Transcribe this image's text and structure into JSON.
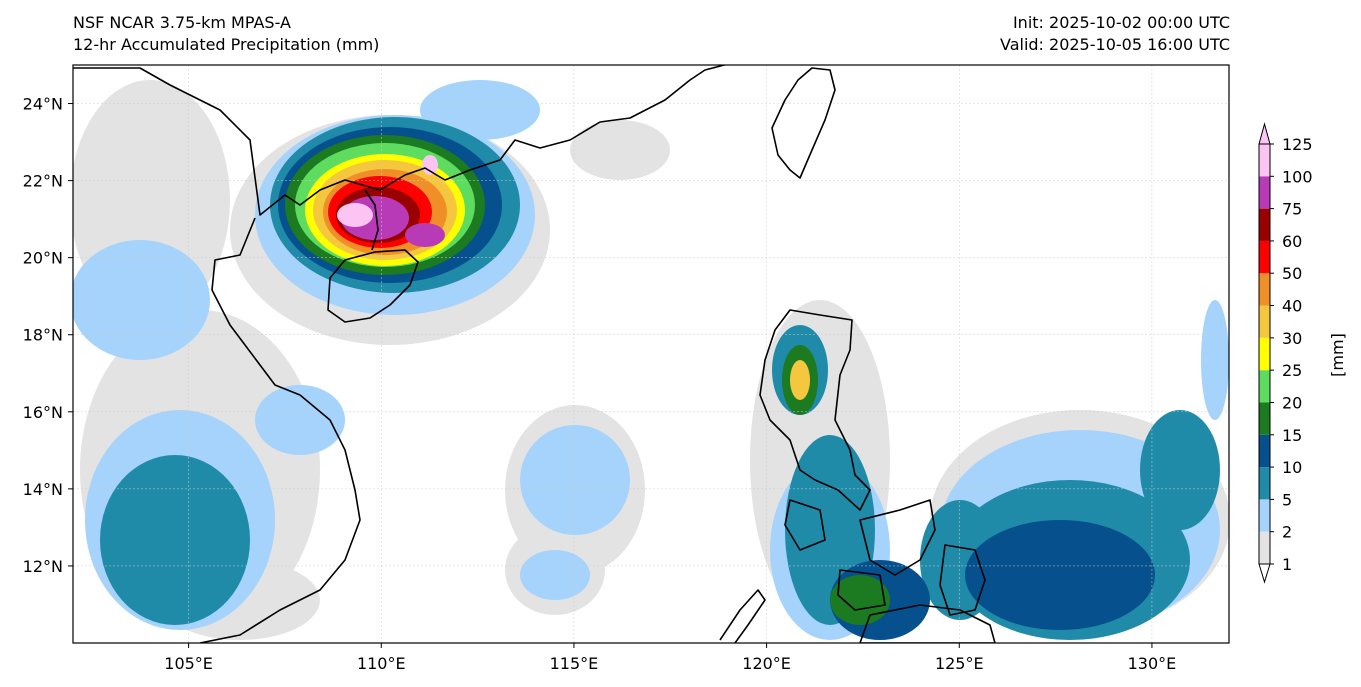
{
  "header": {
    "model": "NSF NCAR 3.75-km MPAS-A",
    "field": "12-hr Accumulated Precipitation (mm)",
    "init": "Init: 2025-10-02 00:00 UTC",
    "valid": "Valid: 2025-10-05 16:00 UTC"
  },
  "map": {
    "extent": {
      "lon": [
        102,
        132
      ],
      "lat": [
        10,
        25
      ]
    },
    "lon_ticks": [
      {
        "value": 105,
        "label": "105°E"
      },
      {
        "value": 110,
        "label": "110°E"
      },
      {
        "value": 115,
        "label": "115°E"
      },
      {
        "value": 120,
        "label": "120°E"
      },
      {
        "value": 125,
        "label": "125°E"
      },
      {
        "value": 130,
        "label": "130°E"
      }
    ],
    "lat_ticks": [
      {
        "value": 12,
        "label": "12°N"
      },
      {
        "value": 14,
        "label": "14°N"
      },
      {
        "value": 16,
        "label": "16°N"
      },
      {
        "value": 18,
        "label": "18°N"
      },
      {
        "value": 20,
        "label": "20°N"
      },
      {
        "value": 22,
        "label": "22°N"
      },
      {
        "value": 24,
        "label": "24°N"
      }
    ]
  },
  "colorbar": {
    "unit": "[mm]",
    "levels": [
      "1",
      "2",
      "5",
      "10",
      "15",
      "20",
      "25",
      "30",
      "40",
      "50",
      "60",
      "75",
      "100",
      "125"
    ],
    "colors": [
      "#e3e3e3",
      "#a6d3fb",
      "#1f8ba8",
      "#06518d",
      "#1c7a20",
      "#5edc5f",
      "#ffff00",
      "#f5c73f",
      "#f08e28",
      "#ff0000",
      "#990000",
      "#b93ab7",
      "#fcc4f3"
    ]
  }
}
